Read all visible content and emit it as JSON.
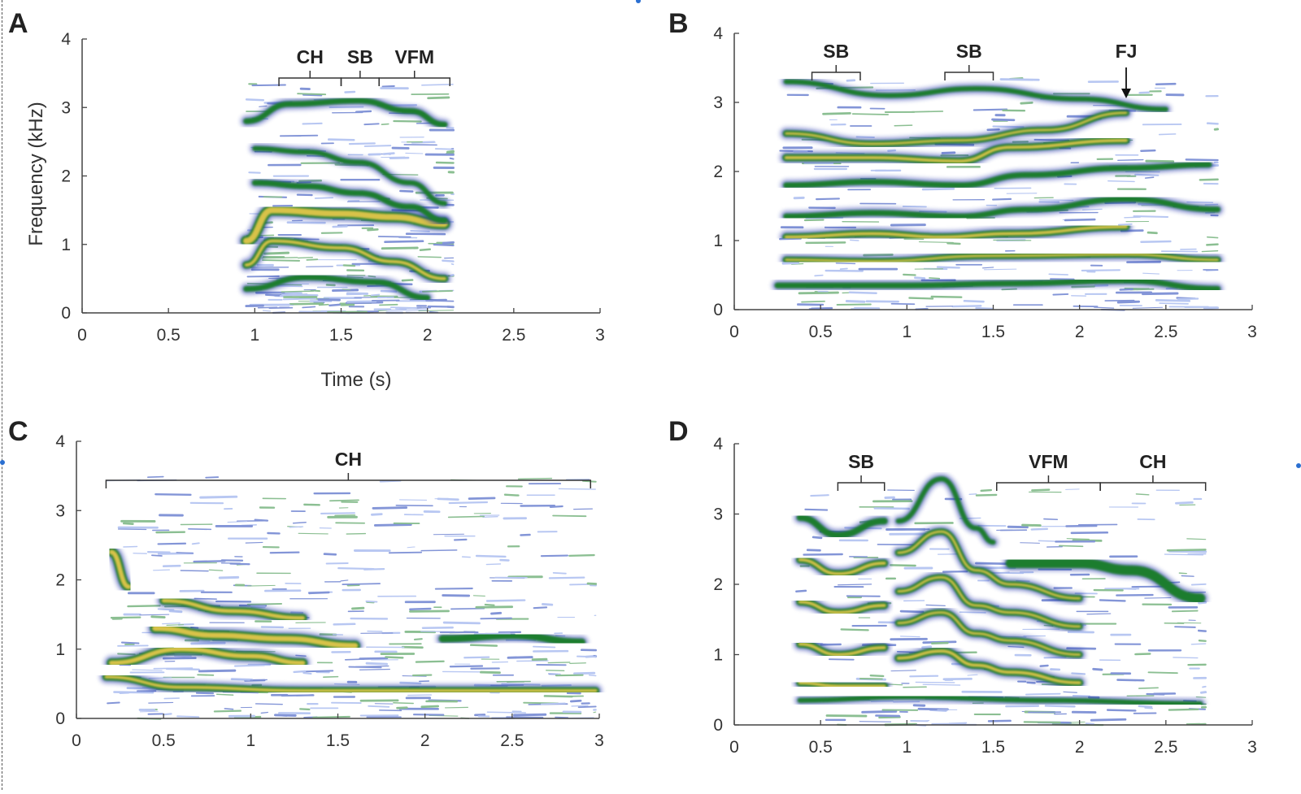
{
  "chart_data": [
    {
      "type": "heatmap",
      "panel": "A",
      "xlabel": "Time (s)",
      "ylabel": "Frequency (kHz)",
      "xlim": [
        0,
        3
      ],
      "ylim": [
        0,
        4
      ],
      "x_ticks": [
        "0",
        "0.5",
        "1",
        "1.5",
        "2",
        "2.5",
        "3"
      ],
      "y_ticks": [
        "0",
        "1",
        "2",
        "3",
        "4"
      ],
      "annotations": [
        {
          "label": "CH",
          "start": 1.14,
          "end": 1.5
        },
        {
          "label": "SB",
          "start": 1.5,
          "end": 1.72
        },
        {
          "label": "VFM",
          "start": 1.72,
          "end": 2.13
        }
      ],
      "extent": [
        0.95,
        2.15
      ],
      "harmonics": [
        {
          "t": [
            0.95,
            1.3,
            1.7,
            2.0
          ],
          "f": [
            0.35,
            0.52,
            0.45,
            0.22
          ],
          "w": 5,
          "hot": false
        },
        {
          "t": [
            0.95,
            1.1,
            1.5,
            1.8,
            2.1
          ],
          "f": [
            0.7,
            1.05,
            0.95,
            0.75,
            0.5
          ],
          "w": 7,
          "hot": true
        },
        {
          "t": [
            0.95,
            1.1,
            1.5,
            1.8,
            2.1
          ],
          "f": [
            1.05,
            1.5,
            1.45,
            1.4,
            1.3
          ],
          "w": 11,
          "hot": true
        },
        {
          "t": [
            1.0,
            1.3,
            1.6,
            1.9,
            2.1
          ],
          "f": [
            1.9,
            1.85,
            1.75,
            1.55,
            1.35
          ],
          "w": 5,
          "hot": false
        },
        {
          "t": [
            1.0,
            1.3,
            1.6,
            1.9,
            2.1
          ],
          "f": [
            2.4,
            2.35,
            2.2,
            1.9,
            1.6
          ],
          "w": 4,
          "hot": false
        },
        {
          "t": [
            0.95,
            1.2,
            1.6,
            1.9,
            2.1
          ],
          "f": [
            2.8,
            3.05,
            3.1,
            2.95,
            2.75
          ],
          "w": 5,
          "hot": false
        }
      ]
    },
    {
      "type": "heatmap",
      "panel": "B",
      "xlim": [
        0,
        3
      ],
      "ylim": [
        0,
        4
      ],
      "x_ticks": [
        "0",
        "0.5",
        "1",
        "1.5",
        "2",
        "2.5",
        "3"
      ],
      "y_ticks": [
        "0",
        "1",
        "2",
        "3",
        "4"
      ],
      "annotations": [
        {
          "label": "SB",
          "start": 0.45,
          "end": 0.73
        },
        {
          "label": "SB",
          "start": 1.22,
          "end": 1.5
        }
      ],
      "arrows": [
        {
          "label": "FJ",
          "at": 2.27
        }
      ],
      "extent": [
        0.25,
        2.8
      ],
      "harmonics": [
        {
          "t": [
            0.25,
            1.0,
            1.6,
            2.27,
            2.8
          ],
          "f": [
            0.35,
            0.35,
            0.38,
            0.42,
            0.3
          ],
          "w": 5,
          "hot": false
        },
        {
          "t": [
            0.3,
            0.8,
            1.5,
            2.27,
            2.8
          ],
          "f": [
            0.72,
            0.7,
            0.78,
            0.8,
            0.72
          ],
          "w": 6,
          "hot": true
        },
        {
          "t": [
            0.3,
            0.8,
            1.2,
            1.6,
            2.27
          ],
          "f": [
            1.05,
            1.1,
            1.05,
            1.1,
            1.2
          ],
          "w": 7,
          "hot": true
        },
        {
          "t": [
            0.3,
            0.8,
            1.3,
            1.7,
            2.27,
            2.8
          ],
          "f": [
            1.35,
            1.4,
            1.35,
            1.45,
            1.6,
            1.45
          ],
          "w": 5,
          "hot": false
        },
        {
          "t": [
            0.3,
            0.8,
            1.3,
            1.7,
            2.27,
            2.75
          ],
          "f": [
            1.8,
            1.85,
            1.8,
            1.95,
            2.05,
            2.1
          ],
          "w": 5,
          "hot": false
        },
        {
          "t": [
            0.3,
            0.8,
            1.3,
            1.6,
            2.27
          ],
          "f": [
            2.2,
            2.2,
            2.15,
            2.35,
            2.45
          ],
          "w": 7,
          "hot": true
        },
        {
          "t": [
            0.3,
            0.8,
            1.3,
            1.8,
            2.27
          ],
          "f": [
            2.55,
            2.4,
            2.45,
            2.6,
            2.85
          ],
          "w": 6,
          "hot": true
        },
        {
          "t": [
            0.3,
            0.9,
            1.4,
            2.0,
            2.5
          ],
          "f": [
            3.3,
            3.1,
            3.2,
            3.05,
            2.9
          ],
          "w": 4,
          "hot": false
        }
      ]
    },
    {
      "type": "heatmap",
      "panel": "C",
      "xlim": [
        0,
        3
      ],
      "ylim": [
        0,
        4
      ],
      "x_ticks": [
        "0",
        "0.5",
        "1",
        "1.5",
        "2",
        "2.5",
        "3"
      ],
      "y_ticks": [
        "0",
        "1",
        "2",
        "3",
        "4"
      ],
      "annotations": [
        {
          "label": "CH",
          "start": 0.17,
          "end": 2.95
        }
      ],
      "extent": [
        0.17,
        2.98
      ],
      "harmonics": [
        {
          "t": [
            0.17,
            0.6,
            1.3,
            2.0,
            2.98
          ],
          "f": [
            0.6,
            0.45,
            0.4,
            0.4,
            0.4
          ],
          "w": 7,
          "hot": true
        },
        {
          "t": [
            0.2,
            0.6,
            1.0,
            1.3
          ],
          "f": [
            0.8,
            1.0,
            0.9,
            0.8
          ],
          "w": 9,
          "hot": true
        },
        {
          "t": [
            0.45,
            0.8,
            1.2,
            1.6
          ],
          "f": [
            1.3,
            1.2,
            1.15,
            1.05
          ],
          "w": 10,
          "hot": true
        },
        {
          "t": [
            0.5,
            0.9,
            1.3
          ],
          "f": [
            1.7,
            1.55,
            1.45
          ],
          "w": 8,
          "hot": true
        },
        {
          "t": [
            2.1,
            2.5,
            2.9
          ],
          "f": [
            1.15,
            1.2,
            1.1
          ],
          "w": 7,
          "hot": false
        },
        {
          "t": [
            0.2,
            0.3
          ],
          "f": [
            2.4,
            1.9
          ],
          "w": 9,
          "hot": true
        }
      ]
    },
    {
      "type": "heatmap",
      "panel": "D",
      "xlim": [
        0,
        3
      ],
      "ylim": [
        0,
        4
      ],
      "x_ticks": [
        "0",
        "0.5",
        "1",
        "1.5",
        "2",
        "2.5",
        "3"
      ],
      "y_ticks": [
        "0",
        "1",
        "2",
        "3",
        "4"
      ],
      "annotations": [
        {
          "label": "SB",
          "start": 0.6,
          "end": 0.87
        },
        {
          "label": "VFM",
          "start": 1.52,
          "end": 2.12
        },
        {
          "label": "CH",
          "start": 2.12,
          "end": 2.73
        }
      ],
      "extent": [
        0.35,
        2.73
      ],
      "harmonics": [
        {
          "t": [
            0.38,
            0.6,
            0.87
          ],
          "f": [
            0.6,
            0.55,
            0.55
          ],
          "w": 7,
          "hot": true
        },
        {
          "t": [
            0.38,
            0.6,
            0.87
          ],
          "f": [
            1.15,
            1.0,
            1.1
          ],
          "w": 7,
          "hot": true
        },
        {
          "t": [
            0.38,
            0.6,
            0.87
          ],
          "f": [
            1.75,
            1.6,
            1.7
          ],
          "w": 7,
          "hot": true
        },
        {
          "t": [
            0.38,
            0.6,
            0.87
          ],
          "f": [
            2.35,
            2.15,
            2.3
          ],
          "w": 7,
          "hot": true
        },
        {
          "t": [
            0.38,
            0.6,
            0.87
          ],
          "f": [
            2.95,
            2.7,
            2.9
          ],
          "w": 6,
          "hot": false
        },
        {
          "t": [
            0.95,
            1.2,
            1.4,
            1.6,
            2.0
          ],
          "f": [
            0.95,
            1.05,
            0.85,
            0.75,
            0.6
          ],
          "w": 7,
          "hot": true
        },
        {
          "t": [
            0.95,
            1.2,
            1.4,
            1.6,
            2.0
          ],
          "f": [
            1.45,
            1.6,
            1.3,
            1.2,
            1.0
          ],
          "w": 6,
          "hot": true
        },
        {
          "t": [
            0.95,
            1.2,
            1.4,
            1.6,
            2.0
          ],
          "f": [
            1.9,
            2.1,
            1.7,
            1.6,
            1.4
          ],
          "w": 6,
          "hot": true
        },
        {
          "t": [
            0.95,
            1.2,
            1.4,
            1.6,
            2.0
          ],
          "f": [
            2.45,
            2.75,
            2.2,
            2.0,
            1.8
          ],
          "w": 6,
          "hot": true
        },
        {
          "t": [
            0.95,
            1.2,
            1.4,
            1.5
          ],
          "f": [
            2.9,
            3.5,
            2.8,
            2.6
          ],
          "w": 4,
          "hot": false
        },
        {
          "t": [
            1.6,
            2.0,
            2.3,
            2.7
          ],
          "f": [
            2.3,
            2.3,
            2.2,
            1.8
          ],
          "w": 10,
          "hot": false
        },
        {
          "t": [
            0.38,
            1.0,
            1.8,
            2.7
          ],
          "f": [
            0.35,
            0.4,
            0.35,
            0.3
          ],
          "w": 4,
          "hot": false
        }
      ]
    }
  ]
}
